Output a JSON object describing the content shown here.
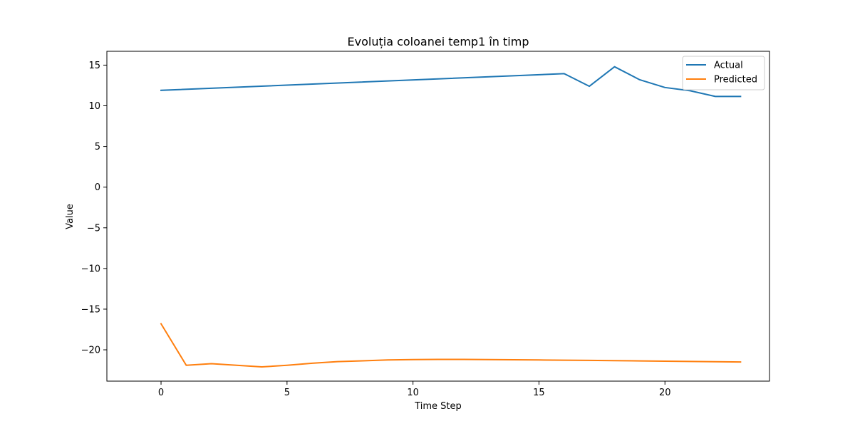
{
  "chart_data": {
    "type": "line",
    "title": "Evoluția coloanei temp1 în timp",
    "xlabel": "Time Step",
    "ylabel": "Value",
    "xlim": [
      -2.15,
      24.15
    ],
    "ylim": [
      -23.85,
      16.7
    ],
    "xticks": [
      0,
      5,
      10,
      15,
      20
    ],
    "yticks": [
      15,
      10,
      5,
      0,
      -5,
      -10,
      -15,
      -20
    ],
    "xtick_labels": [
      "0",
      "5",
      "10",
      "15",
      "20"
    ],
    "ytick_labels": [
      "15",
      "10",
      "5",
      "0",
      "−5",
      "−10",
      "−15",
      "−20"
    ],
    "legend_position": "top-right",
    "grid": false,
    "series": [
      {
        "name": "Actual",
        "color": "#1f77b4",
        "x": [
          0,
          16,
          17,
          18,
          19,
          20,
          21,
          22,
          23
        ],
        "y": [
          11.9,
          13.95,
          12.4,
          14.8,
          13.2,
          12.25,
          11.85,
          11.15,
          11.15
        ]
      },
      {
        "name": "Predicted",
        "color": "#ff7f0e",
        "x": [
          0,
          1,
          2,
          3,
          4,
          5,
          6,
          7,
          8,
          9,
          10,
          11,
          12,
          13,
          14,
          15,
          16,
          17,
          18,
          19,
          20,
          21,
          22,
          23
        ],
        "y": [
          -16.8,
          -21.9,
          -21.7,
          -21.9,
          -22.1,
          -21.9,
          -21.65,
          -21.45,
          -21.35,
          -21.25,
          -21.2,
          -21.18,
          -21.18,
          -21.2,
          -21.22,
          -21.25,
          -21.28,
          -21.3,
          -21.33,
          -21.36,
          -21.4,
          -21.43,
          -21.46,
          -21.5
        ]
      }
    ]
  }
}
